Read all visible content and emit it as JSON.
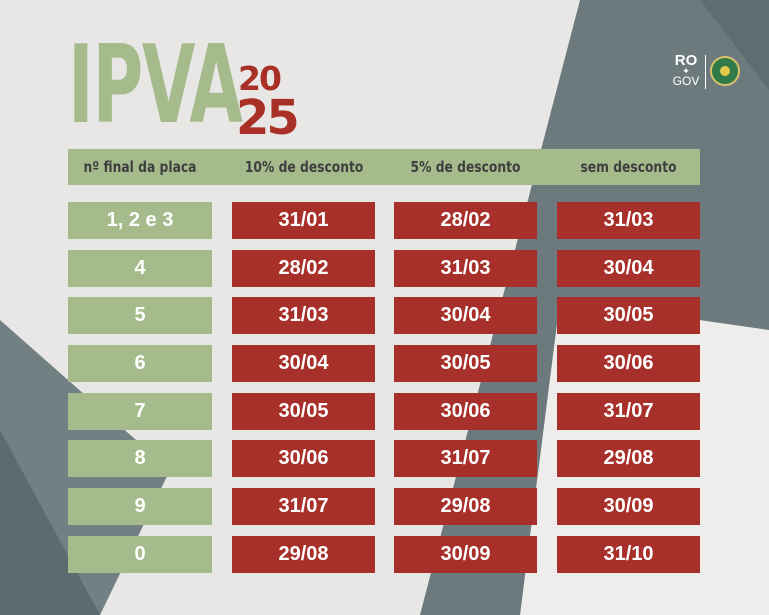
{
  "title": {
    "main": "IPVA",
    "year_top": "20",
    "year_bottom": "25"
  },
  "logo": {
    "line1": "RO",
    "star": "✦",
    "line2": "GOV"
  },
  "table": {
    "headers": [
      "nº final da placa",
      "10% de desconto",
      "5% de desconto",
      "sem desconto"
    ],
    "rows": [
      {
        "plate": "1, 2  e 3",
        "d10": "31/01",
        "d5": "28/02",
        "d0": "31/03"
      },
      {
        "plate": "4",
        "d10": "28/02",
        "d5": "31/03",
        "d0": "30/04"
      },
      {
        "plate": "5",
        "d10": "31/03",
        "d5": "30/04",
        "d0": "30/05"
      },
      {
        "plate": "6",
        "d10": "30/04",
        "d5": "30/05",
        "d0": "30/06"
      },
      {
        "plate": "7",
        "d10": "30/05",
        "d5": "30/06",
        "d0": "31/07"
      },
      {
        "plate": "8",
        "d10": "30/06",
        "d5": "31/07",
        "d0": "29/08"
      },
      {
        "plate": "9",
        "d10": "31/07",
        "d5": "29/08",
        "d0": "30/09"
      },
      {
        "plate": "0",
        "d10": "29/08",
        "d5": "30/09",
        "d0": "31/10"
      }
    ]
  },
  "colors": {
    "green": "#a6bb8c",
    "red": "#a8302a",
    "slate": "#6e7b80",
    "background": "#e8e7e5"
  }
}
